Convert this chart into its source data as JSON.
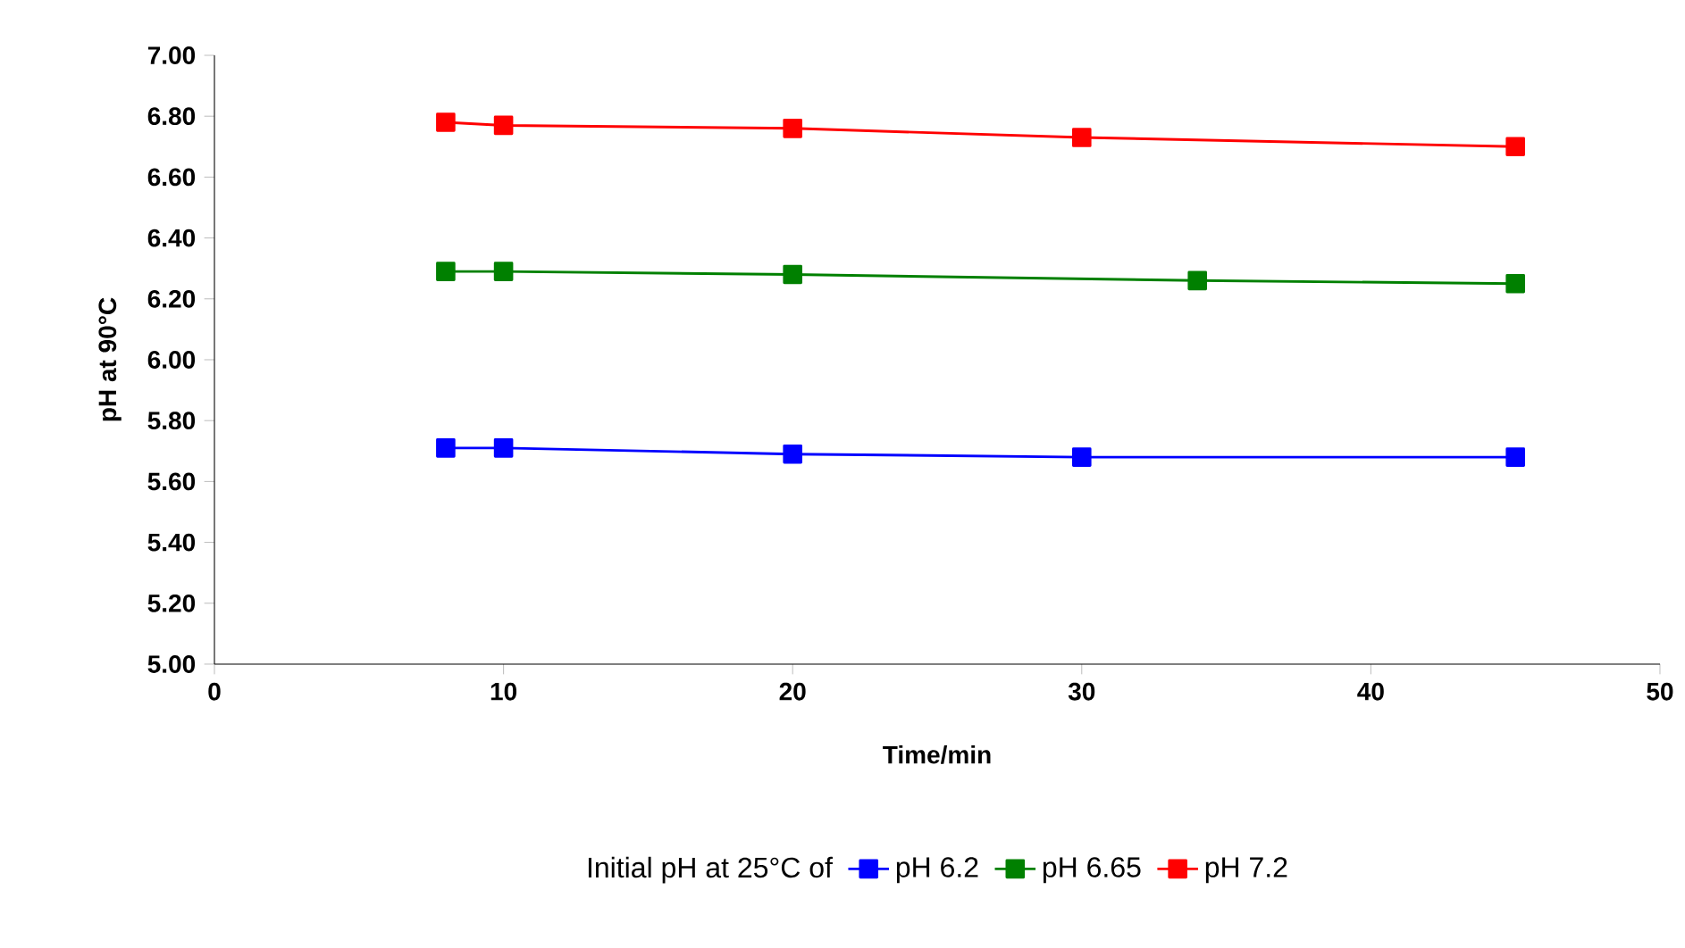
{
  "chart_data": {
    "type": "line",
    "xlabel": "Time/min",
    "ylabel": "pH at 90°C",
    "legend_title": "Initial pH at 25°C of",
    "legend": "bottom",
    "marker": "square",
    "line_style": "solid",
    "grid": false,
    "xlim": [
      0,
      50
    ],
    "xticks": [
      0,
      10,
      20,
      30,
      40,
      50
    ],
    "ylim": [
      5,
      7
    ],
    "yticks": [
      {
        "value": 5,
        "label": "5.00"
      },
      {
        "value": 5.2,
        "label": "5.20"
      },
      {
        "value": 5.4,
        "label": "5.40"
      },
      {
        "value": 5.6,
        "label": "5.60"
      },
      {
        "value": 5.8,
        "label": "5.80"
      },
      {
        "value": 6,
        "label": "6.00"
      },
      {
        "value": 6.2,
        "label": "6.20"
      },
      {
        "value": 6.4,
        "label": "6.40"
      },
      {
        "value": 6.6,
        "label": "6.60"
      },
      {
        "value": 6.8,
        "label": "6.80"
      },
      {
        "value": 7,
        "label": "7.00"
      }
    ],
    "series": [
      {
        "name": "pH 6.2",
        "color": "#0000ff",
        "x": [
          8,
          10,
          20,
          30,
          45
        ],
        "values": [
          5.71,
          5.71,
          5.69,
          5.68,
          5.68
        ]
      },
      {
        "name": "pH 6.65",
        "color": "#008000",
        "x": [
          8,
          10,
          20,
          34,
          45
        ],
        "values": [
          6.29,
          6.29,
          6.28,
          6.26,
          6.25
        ]
      },
      {
        "name": "pH 7.2",
        "color": "#ff0000",
        "x": [
          8,
          10,
          20,
          30,
          45
        ],
        "values": [
          6.78,
          6.77,
          6.76,
          6.73,
          6.7
        ]
      }
    ]
  }
}
